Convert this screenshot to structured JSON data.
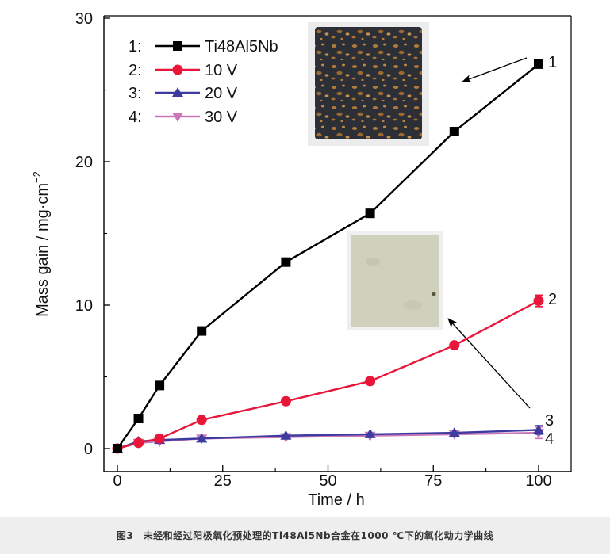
{
  "chart_data": {
    "type": "line",
    "xlabel": "Time / h",
    "ylabel": "Mass gain / mg·cm",
    "ylabel_sup": "−2",
    "xlim": [
      -3,
      108
    ],
    "ylim": [
      -1.5,
      30
    ],
    "x_ticks": [
      0,
      25,
      50,
      75,
      100
    ],
    "y_ticks": [
      0,
      10,
      20,
      30
    ],
    "grid": false,
    "legend_position": "top-left",
    "series": [
      {
        "name": "Ti48Al5Nb",
        "legend_prefix": "1:",
        "curve_label": "1",
        "color": "#000000",
        "marker": "square",
        "x": [
          0,
          5,
          10,
          20,
          40,
          60,
          80,
          100
        ],
        "y": [
          0,
          2.1,
          4.4,
          8.2,
          13.0,
          16.4,
          22.1,
          26.8
        ]
      },
      {
        "name": "10 V",
        "legend_prefix": "2:",
        "curve_label": "2",
        "color": "#e8173a",
        "marker": "circle",
        "x": [
          0,
          5,
          10,
          20,
          40,
          60,
          80,
          100
        ],
        "y": [
          0,
          0.4,
          0.7,
          2.0,
          3.3,
          4.7,
          7.2,
          10.3
        ],
        "error": [
          0,
          0,
          0,
          0,
          0,
          0,
          0,
          0.4
        ]
      },
      {
        "name": "20 V",
        "legend_prefix": "3:",
        "curve_label": "3",
        "color": "#3d3aa0",
        "marker": "triangle-up",
        "x": [
          0,
          5,
          10,
          20,
          40,
          60,
          80,
          100
        ],
        "y": [
          0,
          0.5,
          0.6,
          0.7,
          0.9,
          1.0,
          1.1,
          1.3
        ],
        "error": [
          0,
          0,
          0,
          0,
          0,
          0,
          0,
          0.3
        ]
      },
      {
        "name": "30 V",
        "legend_prefix": "4:",
        "curve_label": "4",
        "color": "#c977b8",
        "marker": "triangle-down",
        "x": [
          0,
          5,
          10,
          20,
          40,
          60,
          80,
          100
        ],
        "y": [
          0,
          0.4,
          0.5,
          0.7,
          0.8,
          0.9,
          1.0,
          1.1
        ],
        "error": [
          0,
          0,
          0,
          0,
          0,
          0,
          0,
          0.4
        ]
      }
    ]
  },
  "photos": {
    "dark_sample_color": "#2c3036",
    "light_sample_color": "#cfd1bd"
  },
  "caption": {
    "text": "图3　未经和经过阳极氧化预处理的Ti48Al5Nb合金在1000 ℃下的氧化动力学曲线"
  }
}
